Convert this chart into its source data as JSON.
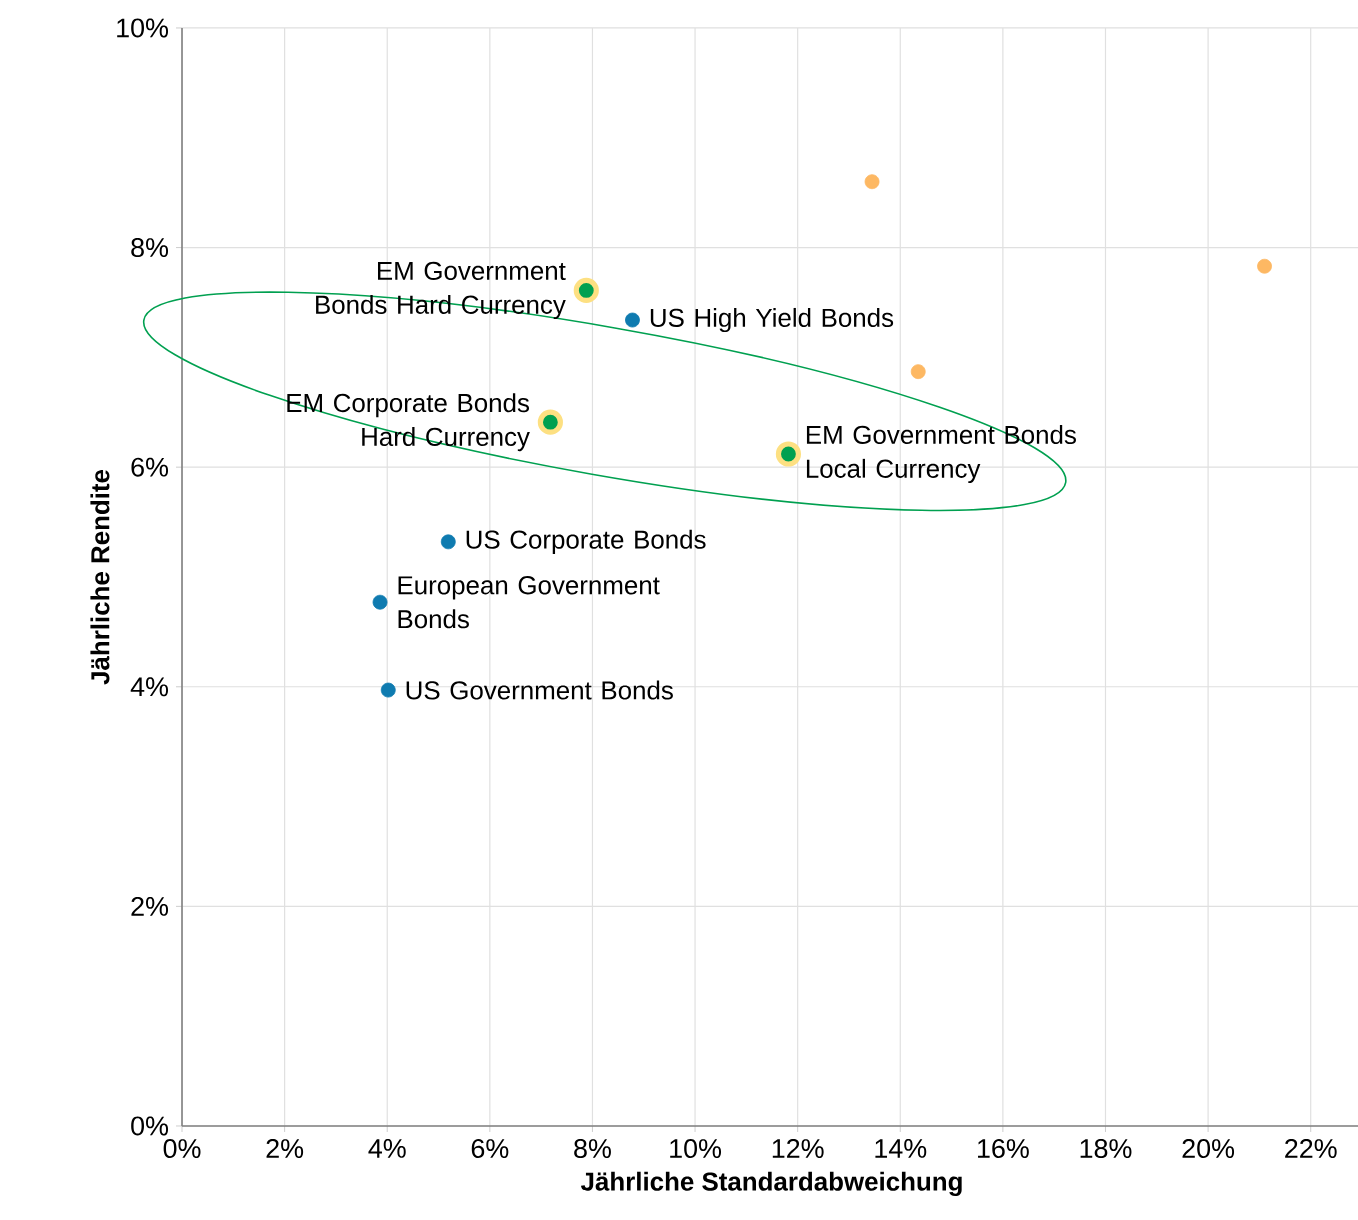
{
  "chart_data": {
    "type": "scatter",
    "xlabel": "Jährliche Standardabweichung",
    "ylabel": "Jährliche Rendite",
    "xlim": [
      0,
      23
    ],
    "ylim": [
      0,
      10
    ],
    "xticks": [
      {
        "value": 0,
        "label": "0%"
      },
      {
        "value": 2,
        "label": "2%"
      },
      {
        "value": 4,
        "label": "4%"
      },
      {
        "value": 6,
        "label": "6%"
      },
      {
        "value": 8,
        "label": "8%"
      },
      {
        "value": 10,
        "label": "10%"
      },
      {
        "value": 12,
        "label": "12%"
      },
      {
        "value": 14,
        "label": "14%"
      },
      {
        "value": 16,
        "label": "16%"
      },
      {
        "value": 18,
        "label": "18%"
      },
      {
        "value": 20,
        "label": "20%"
      },
      {
        "value": 22,
        "label": "22%"
      }
    ],
    "yticks": [
      {
        "value": 0,
        "label": "0%"
      },
      {
        "value": 2,
        "label": "2%"
      },
      {
        "value": 4,
        "label": "4%"
      },
      {
        "value": 6,
        "label": "6%"
      },
      {
        "value": 8,
        "label": "8%"
      },
      {
        "value": 10,
        "label": "10%"
      }
    ],
    "grid": true,
    "series": [
      {
        "color": "#fdb863",
        "x": [
          13.45,
          21.1,
          14.35
        ],
        "values": [
          8.6,
          7.83,
          6.87
        ]
      },
      {
        "color": "#0f7bb0",
        "x": [
          8.78,
          5.19,
          3.86,
          4.02
        ],
        "values": [
          7.34,
          5.32,
          4.77,
          3.97
        ]
      },
      {
        "color": "#00a050",
        "x": [
          7.88,
          7.18,
          11.82
        ],
        "values": [
          7.61,
          6.41,
          6.12
        ]
      }
    ],
    "annotations": [
      {
        "text": "EM Government Bonds Hard Currency",
        "x": 7.88,
        "y": 7.61
      },
      {
        "text": "US High Yield Bonds",
        "x": 8.78,
        "y": 7.34
      },
      {
        "text": "EM Corporate Bonds Hard Currency",
        "x": 7.18,
        "y": 6.41
      },
      {
        "text": "EM Government Bonds Local Currency",
        "x": 11.82,
        "y": 6.12
      },
      {
        "text": "US Corporate Bonds",
        "x": 5.19,
        "y": 5.32
      },
      {
        "text": "European Government Bonds",
        "x": 3.86,
        "y": 4.77
      },
      {
        "text": "US Government Bonds",
        "x": 4.02,
        "y": 3.97
      }
    ]
  }
}
